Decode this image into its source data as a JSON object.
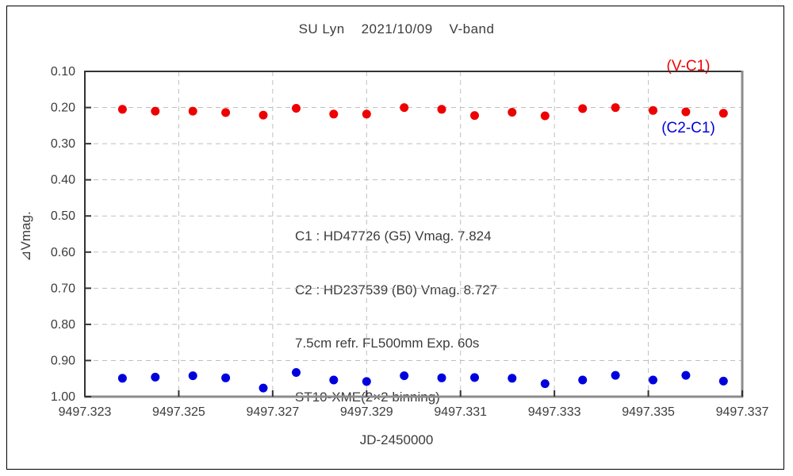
{
  "title": "SU Lyn    2021/10/09    V-band",
  "chart_data": {
    "type": "scatter",
    "title": "SU Lyn 2021/10/09 V-band",
    "xlabel": "JD-2450000",
    "ylabel": "⧸Vmag.",
    "ylabel_display": "⊿Vmag.",
    "xlim": [
      9497.323,
      9497.337
    ],
    "ylim_bottom_to_top": [
      1.0,
      0.1
    ],
    "y_axis_inverted": true,
    "grid": "dashed",
    "x_tick_labels": [
      "9497.323",
      "9497.325",
      "9497.327",
      "9497.329",
      "9497.331",
      "9497.333",
      "9497.335",
      "9497.337"
    ],
    "y_tick_labels": [
      "0.10",
      "0.20",
      "0.30",
      "0.40",
      "0.50",
      "0.60",
      "0.70",
      "0.80",
      "0.90",
      "1.00"
    ],
    "x": [
      9497.3238,
      9497.3245,
      9497.3253,
      9497.326,
      9497.3268,
      9497.3275,
      9497.3283,
      9497.329,
      9497.3298,
      9497.3306,
      9497.3313,
      9497.3321,
      9497.3328,
      9497.3336,
      9497.3343,
      9497.3351,
      9497.3358,
      9497.3366
    ],
    "series": [
      {
        "name": "(V-C1)",
        "color": "#ee0000",
        "values": [
          0.205,
          0.21,
          0.21,
          0.214,
          0.221,
          0.202,
          0.218,
          0.218,
          0.2,
          0.205,
          0.222,
          0.213,
          0.223,
          0.203,
          0.2,
          0.208,
          0.212,
          0.216
        ]
      },
      {
        "name": "(C2-C1)",
        "color": "#0000dd",
        "values": [
          0.949,
          0.946,
          0.942,
          0.948,
          0.976,
          0.933,
          0.954,
          0.958,
          0.942,
          0.948,
          0.947,
          0.949,
          0.964,
          0.954,
          0.941,
          0.954,
          0.941,
          0.957
        ]
      }
    ],
    "legend": {
      "position": "top-right",
      "entries": [
        {
          "label": "(V-C1)",
          "color": "#ee0000"
        },
        {
          "label": "(C2-C1)",
          "color": "#0000dd"
        }
      ]
    },
    "annotations": [
      "C1 : HD47726 (G5) Vmag. 7.824",
      "C2 : HD237539 (B0) Vmag. 8.727",
      "7.5cm refr. FL500mm Exp. 60s",
      "ST10-XME(2×2 binning)"
    ]
  },
  "style_colors": {
    "grid": "#bfbfbf",
    "axis_dark": "#333333",
    "axis_light": "#8c8c8c",
    "text": "#3c3c3c",
    "frame": "#000000"
  }
}
